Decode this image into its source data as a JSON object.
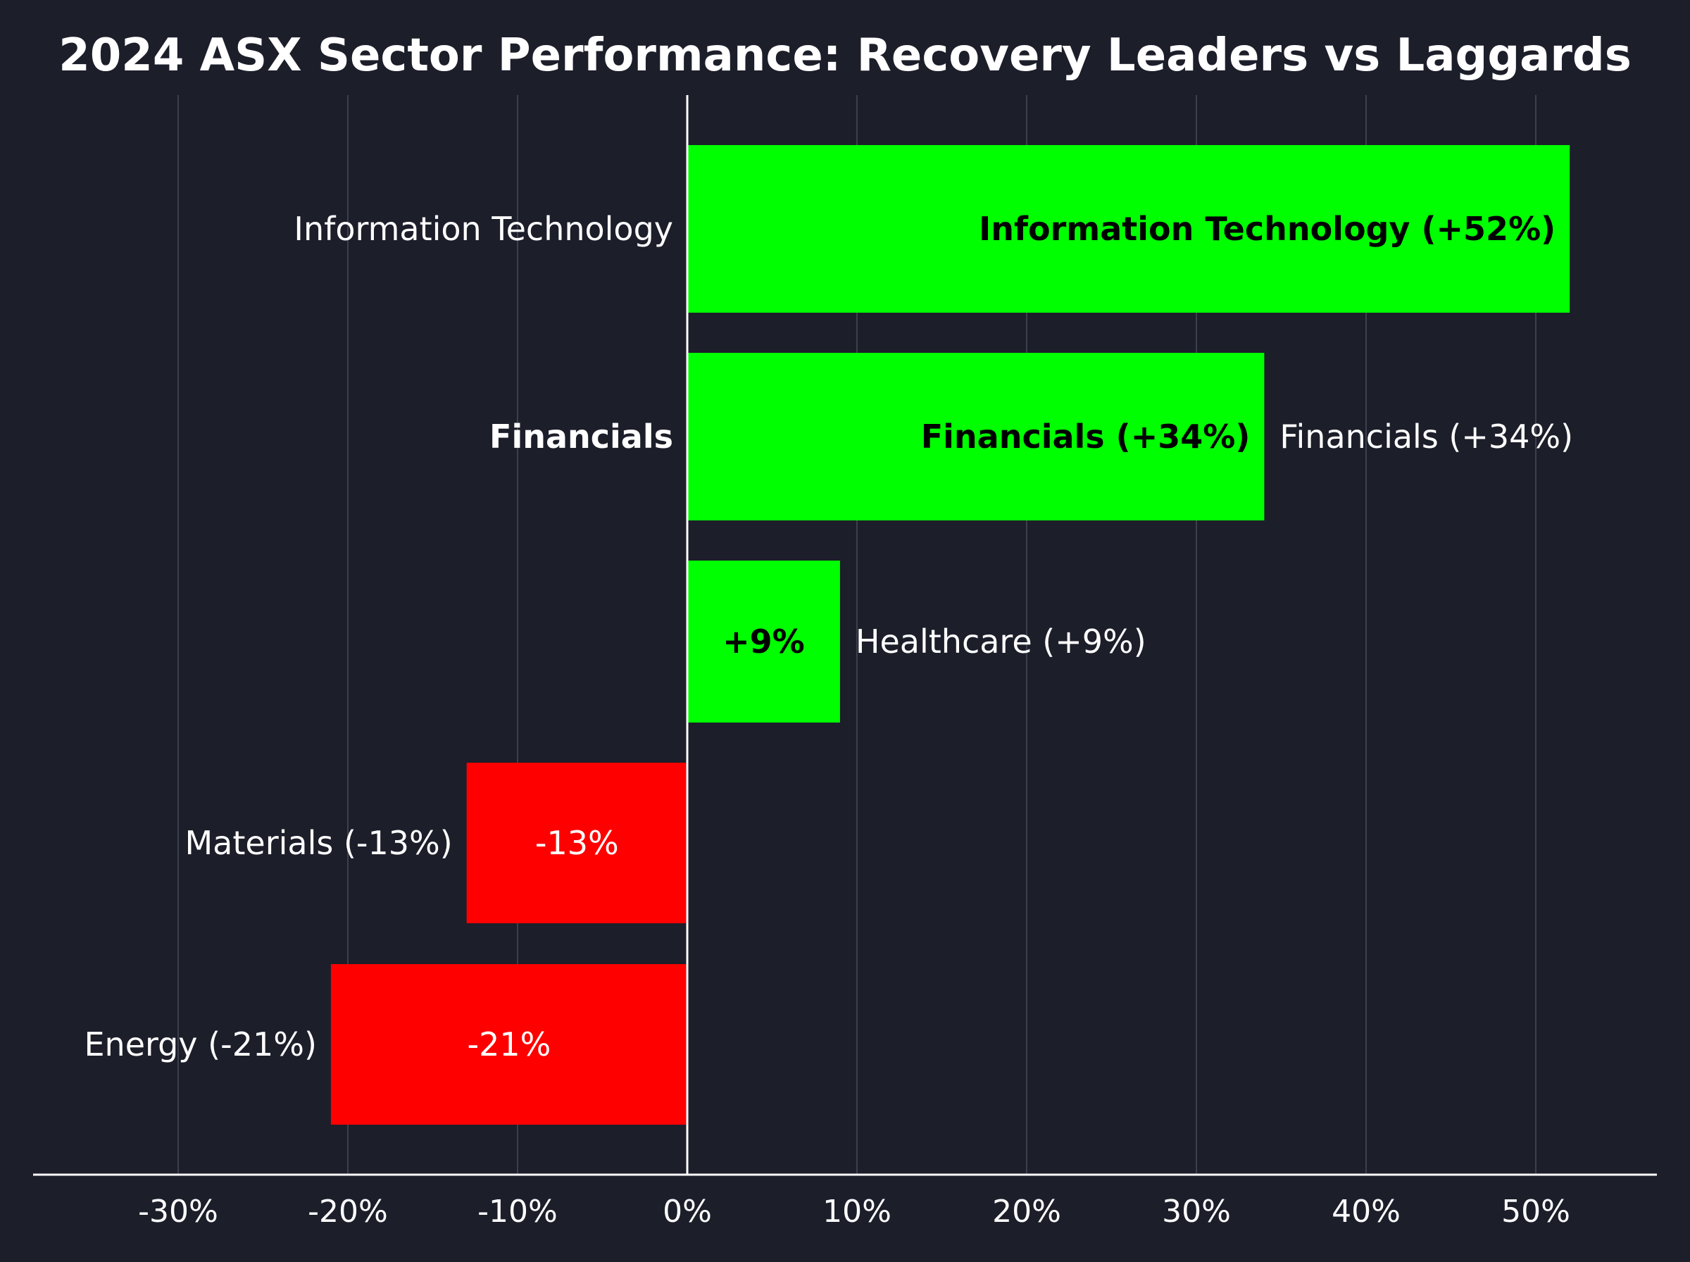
{
  "chart_data": {
    "type": "bar",
    "orientation": "horizontal",
    "title": "2024 ASX Sector Performance: Recovery Leaders vs Laggards",
    "xlabel": "",
    "ylabel": "",
    "xlim": [
      -38,
      57
    ],
    "x_ticks": [
      -30,
      -20,
      -10,
      0,
      10,
      20,
      30,
      40,
      50
    ],
    "x_tick_labels": [
      "-30%",
      "-20%",
      "-10%",
      "0%",
      "10%",
      "20%",
      "30%",
      "40%",
      "50%"
    ],
    "grid": "vertical",
    "positive_color": "#00ff00",
    "negative_color": "#ff0000",
    "categories": [
      "Information Technology",
      "Financials",
      "Healthcare",
      "Materials",
      "Energy"
    ],
    "values": [
      52,
      34,
      9,
      -13,
      -21
    ],
    "bars": [
      {
        "category": "Information Technology",
        "value": 52,
        "axis_label": "Information Technology",
        "axis_label_bold": false,
        "inside_label": "Information Technology (+52%)",
        "inside_label_bold": true,
        "outside_label": ""
      },
      {
        "category": "Financials",
        "value": 34,
        "axis_label": "Financials",
        "axis_label_bold": true,
        "inside_label": "Financials (+34%)",
        "inside_label_bold": true,
        "outside_label": "Financials (+34%)"
      },
      {
        "category": "Healthcare",
        "value": 9,
        "axis_label": "",
        "axis_label_bold": false,
        "inside_label": "+9%",
        "inside_label_bold": true,
        "outside_label": "Healthcare (+9%)"
      },
      {
        "category": "Materials",
        "value": -13,
        "axis_label": "",
        "axis_label_bold": false,
        "inside_label": "-13%",
        "inside_label_bold": false,
        "outside_label": "Materials (-13%)"
      },
      {
        "category": "Energy",
        "value": -21,
        "axis_label": "",
        "axis_label_bold": false,
        "inside_label": "-21%",
        "inside_label_bold": false,
        "outside_label": "Energy (-21%)"
      }
    ]
  }
}
